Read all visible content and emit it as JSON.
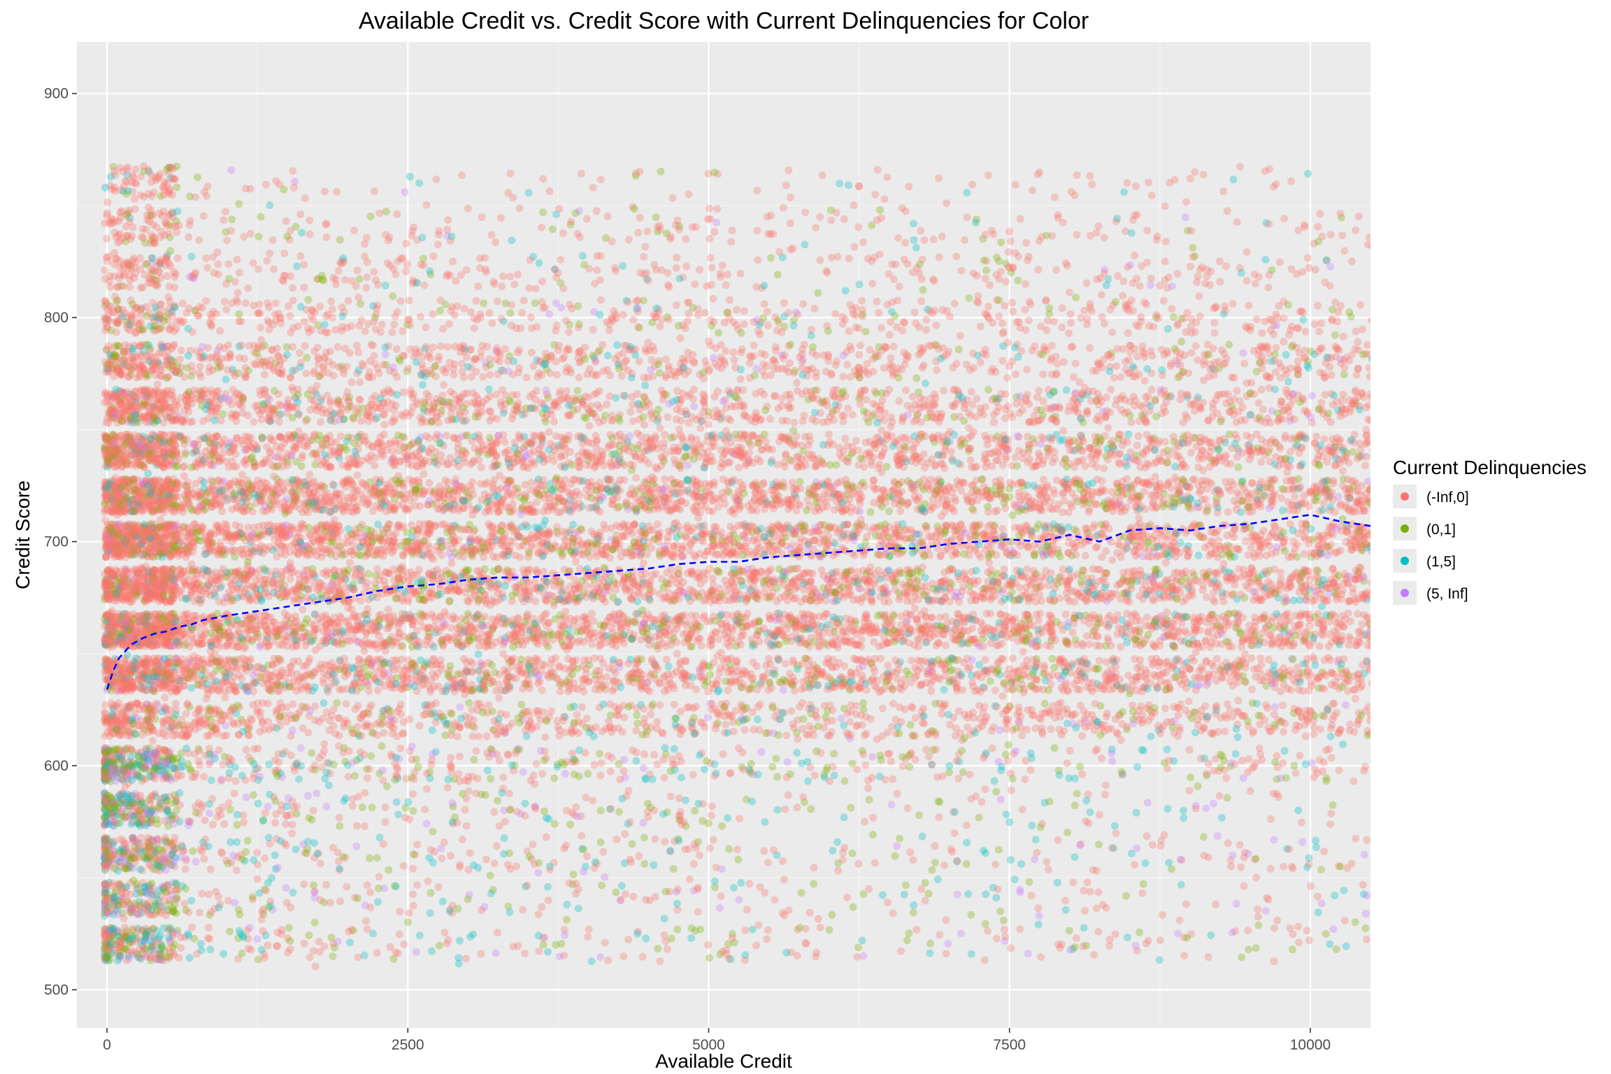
{
  "chart_data": {
    "type": "scatter",
    "title": "Available Credit vs. Credit Score with Current Delinquencies for Color",
    "xlabel": "Available Credit",
    "ylabel": "Credit Score",
    "xlim": [
      -250,
      10500
    ],
    "ylim": [
      483,
      923
    ],
    "x_ticks": [
      0,
      2500,
      5000,
      7500,
      10000
    ],
    "y_ticks": [
      500,
      600,
      700,
      800,
      900
    ],
    "grid": true,
    "legend": {
      "title": "Current Delinquencies",
      "position": "right",
      "entries": [
        {
          "label": "(-Inf,0]",
          "color": "#f8766d"
        },
        {
          "label": "(0,1]",
          "color": "#7cae00"
        },
        {
          "label": "(1,5]",
          "color": "#00bfc4"
        },
        {
          "label": "(5, Inf]",
          "color": "#c77cff"
        }
      ]
    },
    "score_bands": [
      {
        "low": 513,
        "high": 528,
        "density": 0.15
      },
      {
        "low": 533,
        "high": 548,
        "density": 0.12
      },
      {
        "low": 553,
        "high": 568,
        "density": 0.16
      },
      {
        "low": 573,
        "high": 588,
        "density": 0.15
      },
      {
        "low": 593,
        "high": 608,
        "density": 0.28
      },
      {
        "low": 613,
        "high": 628,
        "density": 0.45
      },
      {
        "low": 633,
        "high": 648,
        "density": 0.8
      },
      {
        "low": 653,
        "high": 668,
        "density": 1.0
      },
      {
        "low": 673,
        "high": 688,
        "density": 0.95
      },
      {
        "low": 693,
        "high": 708,
        "density": 1.0
      },
      {
        "low": 713,
        "high": 728,
        "density": 0.95
      },
      {
        "low": 733,
        "high": 748,
        "density": 0.75
      },
      {
        "low": 753,
        "high": 768,
        "density": 0.55
      },
      {
        "low": 773,
        "high": 788,
        "density": 0.4
      },
      {
        "low": 793,
        "high": 808,
        "density": 0.22
      },
      {
        "low": 813,
        "high": 828,
        "density": 0.12
      },
      {
        "low": 833,
        "high": 848,
        "density": 0.07
      },
      {
        "low": 853,
        "high": 868,
        "density": 0.03
      }
    ],
    "category_share": {
      "(-Inf,0]": 0.82,
      "(0,1]": 0.1,
      "(1,5]": 0.06,
      "(5, Inf]": 0.02
    },
    "trend_line": {
      "style": "dashed",
      "color": "#0000ff",
      "x": [
        0,
        50,
        100,
        200,
        300,
        400,
        500,
        600,
        700,
        800,
        900,
        1000,
        1250,
        1500,
        1750,
        2000,
        2250,
        2500,
        2750,
        3000,
        3250,
        3500,
        3750,
        4000,
        4250,
        4500,
        4750,
        5000,
        5250,
        5500,
        5750,
        6000,
        6250,
        6500,
        6750,
        7000,
        7250,
        7500,
        7750,
        8000,
        8250,
        8500,
        8750,
        9000,
        9250,
        9500,
        9750,
        10000,
        10250,
        10500
      ],
      "y": [
        634,
        642,
        648,
        654,
        657,
        659,
        660,
        662,
        663,
        665,
        666,
        667,
        669,
        671,
        673,
        675,
        678,
        680,
        681,
        683,
        684,
        684,
        685,
        686,
        687,
        688,
        690,
        691,
        691,
        693,
        694,
        695,
        696,
        697,
        697,
        699,
        700,
        701,
        700,
        703,
        700,
        705,
        706,
        705,
        707,
        708,
        710,
        712,
        709,
        707
      ]
    }
  }
}
